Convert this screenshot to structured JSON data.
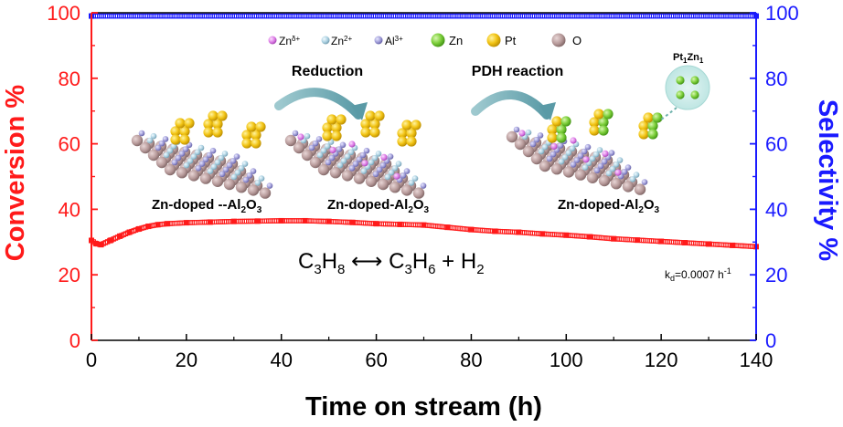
{
  "chart_data": {
    "type": "scatter",
    "xlabel": "Time on stream (h)",
    "ylabel_left": "Conversion %",
    "ylabel_right": "Selectivity %",
    "xlim": [
      0,
      140
    ],
    "ylim_left": [
      0,
      100
    ],
    "ylim_right": [
      0,
      100
    ],
    "x_ticks": [
      "0",
      "20",
      "40",
      "60",
      "80",
      "100",
      "120",
      "140"
    ],
    "y_ticks_left": [
      "0",
      "20",
      "40",
      "60",
      "80",
      "100"
    ],
    "y_ticks_right": [
      "0",
      "20",
      "40",
      "60",
      "80",
      "100"
    ],
    "colors": {
      "conversion": "#ff1a1a",
      "selectivity": "#1a1aff"
    },
    "series": [
      {
        "axis": "left",
        "x": [
          0,
          1,
          2,
          4,
          6,
          8,
          10,
          12,
          14,
          16,
          20,
          25,
          30,
          35,
          40,
          45,
          50,
          55,
          60,
          65,
          70,
          75,
          80,
          85,
          90,
          95,
          100,
          105,
          110,
          115,
          120,
          125,
          130,
          135,
          140
        ],
        "y": [
          30.5,
          29.5,
          29.2,
          30.5,
          31.8,
          33.0,
          34.0,
          34.8,
          35.3,
          35.6,
          35.9,
          36.1,
          36.3,
          36.4,
          36.5,
          36.5,
          36.3,
          36.0,
          35.6,
          35.4,
          35.2,
          34.5,
          33.8,
          33.3,
          33.0,
          32.5,
          32.1,
          31.6,
          31.0,
          30.6,
          30.2,
          29.8,
          29.4,
          29.0,
          28.6
        ]
      },
      {
        "axis": "right",
        "x": [
          0,
          140
        ],
        "y": [
          99,
          99
        ]
      }
    ],
    "annotations": {
      "equation": {
        "lhs": "C",
        "lhs_sub": "3",
        "lhs_h": "H",
        "lhs_h_sub": "8",
        "arrow": "⟷",
        "rhs1": "C",
        "rhs1_sub": "3",
        "rhs1_h": "H",
        "rhs1_h_sub": "6",
        "plus": "+",
        "rhs2": "H",
        "rhs2_sub": "2"
      },
      "kd": {
        "k": "k",
        "k_sub": "d",
        "value": "=0.0007 h",
        "exp": "-1"
      },
      "legend": [
        "Zn",
        "δ+",
        "Zn",
        "2+",
        "Al",
        "3+",
        "Zn",
        "Pt",
        "O"
      ],
      "step1": "Reduction",
      "step2": "PDH reaction",
      "cluster": {
        "a": "Pt",
        "a_sub": "1",
        "b": "Zn",
        "b_sub": "1"
      },
      "label1": {
        "a": "Zn-doped --Al",
        "sub1": "2",
        "mid": "O",
        "sub2": "3"
      },
      "label2": {
        "a": "Zn-doped-Al",
        "sub1": "2",
        "mid": "O",
        "sub2": "3"
      },
      "label3": {
        "a": "Zn-doped-Al",
        "sub1": "2",
        "mid": "O",
        "sub2": "3"
      }
    }
  }
}
